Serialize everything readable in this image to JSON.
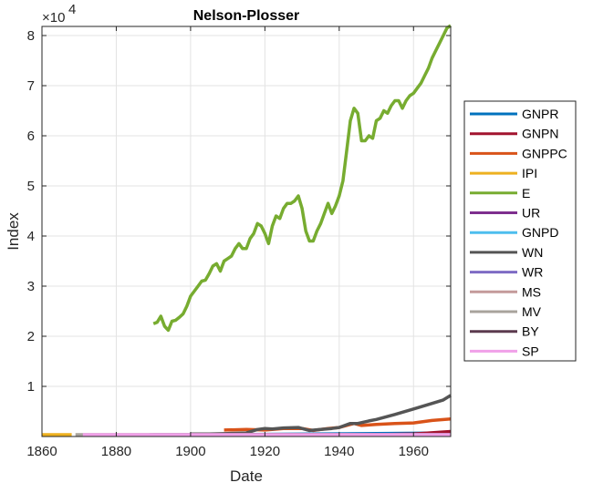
{
  "chart_data": {
    "type": "line",
    "title": "Nelson-Plosser",
    "xlabel": "Date",
    "ylabel": "Index",
    "y_exponent_label": "×10^4",
    "y_exponent": 4,
    "xlim": [
      1860,
      1970
    ],
    "ylim": [
      0,
      8.2
    ],
    "xticks": [
      1860,
      1880,
      1900,
      1920,
      1940,
      1960
    ],
    "yticks": [
      1,
      2,
      3,
      4,
      5,
      6,
      7,
      8
    ],
    "grid": true,
    "legend_position": "outside-right",
    "series": [
      {
        "name": "GNPR",
        "color": "#0072BD",
        "x": [
          1909,
          1970
        ],
        "values": [
          0.01,
          0.07
        ]
      },
      {
        "name": "GNPN",
        "color": "#A2142F",
        "x": [
          1909,
          1940,
          1950,
          1960,
          1970
        ],
        "values": [
          0.003,
          0.01,
          0.03,
          0.05,
          0.1
        ]
      },
      {
        "name": "GNPPC",
        "color": "#D95319",
        "x": [
          1909,
          1915,
          1920,
          1925,
          1930,
          1933,
          1937,
          1940,
          1944,
          1946,
          1950,
          1955,
          1960,
          1965,
          1970
        ],
        "values": [
          0.13,
          0.14,
          0.13,
          0.16,
          0.16,
          0.12,
          0.16,
          0.18,
          0.26,
          0.22,
          0.24,
          0.26,
          0.27,
          0.32,
          0.35
        ]
      },
      {
        "name": "IPI",
        "color": "#EDB120",
        "x": [
          1860,
          1868
        ],
        "values": [
          0.0,
          0.0
        ]
      },
      {
        "name": "E",
        "color": "#77AC30",
        "x": [
          1890,
          1891,
          1892,
          1893,
          1894,
          1895,
          1896,
          1897,
          1898,
          1899,
          1900,
          1901,
          1902,
          1903,
          1904,
          1905,
          1906,
          1907,
          1908,
          1909,
          1910,
          1911,
          1912,
          1913,
          1914,
          1915,
          1916,
          1917,
          1918,
          1919,
          1920,
          1921,
          1922,
          1923,
          1924,
          1925,
          1926,
          1927,
          1928,
          1929,
          1930,
          1931,
          1932,
          1933,
          1934,
          1935,
          1936,
          1937,
          1938,
          1939,
          1940,
          1941,
          1942,
          1943,
          1944,
          1945,
          1946,
          1947,
          1948,
          1949,
          1950,
          1951,
          1952,
          1953,
          1954,
          1955,
          1956,
          1957,
          1958,
          1959,
          1960,
          1961,
          1962,
          1963,
          1964,
          1965,
          1966,
          1967,
          1968,
          1969,
          1970
        ],
        "values": [
          2.25,
          2.28,
          2.4,
          2.2,
          2.12,
          2.3,
          2.32,
          2.38,
          2.45,
          2.6,
          2.8,
          2.9,
          3.0,
          3.1,
          3.12,
          3.25,
          3.4,
          3.45,
          3.3,
          3.5,
          3.55,
          3.6,
          3.75,
          3.85,
          3.75,
          3.75,
          3.95,
          4.05,
          4.25,
          4.2,
          4.05,
          3.85,
          4.2,
          4.4,
          4.35,
          4.55,
          4.65,
          4.65,
          4.7,
          4.8,
          4.55,
          4.1,
          3.9,
          3.9,
          4.1,
          4.25,
          4.45,
          4.65,
          4.45,
          4.6,
          4.8,
          5.1,
          5.7,
          6.3,
          6.55,
          6.45,
          5.9,
          5.9,
          6.0,
          5.95,
          6.3,
          6.35,
          6.5,
          6.45,
          6.6,
          6.7,
          6.7,
          6.55,
          6.7,
          6.8,
          6.85,
          6.95,
          7.05,
          7.2,
          7.35,
          7.55,
          7.7,
          7.85,
          8.0,
          8.15,
          8.2
        ]
      },
      {
        "name": "UR",
        "color": "#7E2F8E",
        "x": [
          1890,
          1970
        ],
        "values": [
          0.0,
          0.0
        ]
      },
      {
        "name": "GNPD",
        "color": "#4DBEEE",
        "x": [
          1889,
          1970
        ],
        "values": [
          0.0,
          0.01
        ]
      },
      {
        "name": "WN",
        "color": "#555555",
        "x": [
          1900,
          1905,
          1910,
          1915,
          1918,
          1920,
          1922,
          1925,
          1929,
          1932,
          1935,
          1938,
          1940,
          1943,
          1945,
          1948,
          1950,
          1955,
          1960,
          1965,
          1968,
          1970
        ],
        "values": [
          0.05,
          0.05,
          0.06,
          0.07,
          0.14,
          0.16,
          0.15,
          0.17,
          0.18,
          0.12,
          0.14,
          0.16,
          0.18,
          0.26,
          0.26,
          0.31,
          0.34,
          0.44,
          0.55,
          0.66,
          0.73,
          0.82
        ]
      },
      {
        "name": "WR",
        "color": "#7E6BC4",
        "x": [
          1900,
          1970
        ],
        "values": [
          0.0,
          0.01
        ]
      },
      {
        "name": "MS",
        "color": "#C49A9A",
        "x": [
          1889,
          1970
        ],
        "values": [
          0.0,
          0.02
        ]
      },
      {
        "name": "MV",
        "color": "#A8A39C",
        "x": [
          1869,
          1970
        ],
        "values": [
          0.0,
          0.0
        ]
      },
      {
        "name": "BY",
        "color": "#5B3A4E",
        "x": [
          1900,
          1970
        ],
        "values": [
          0.0,
          0.0
        ]
      },
      {
        "name": "SP",
        "color": "#F0A0E8",
        "x": [
          1871,
          1970
        ],
        "values": [
          0.0,
          0.01
        ]
      }
    ]
  },
  "legend": {
    "items": [
      "GNPR",
      "GNPN",
      "GNPPC",
      "IPI",
      "E",
      "UR",
      "GNPD",
      "WN",
      "WR",
      "MS",
      "MV",
      "BY",
      "SP"
    ]
  }
}
